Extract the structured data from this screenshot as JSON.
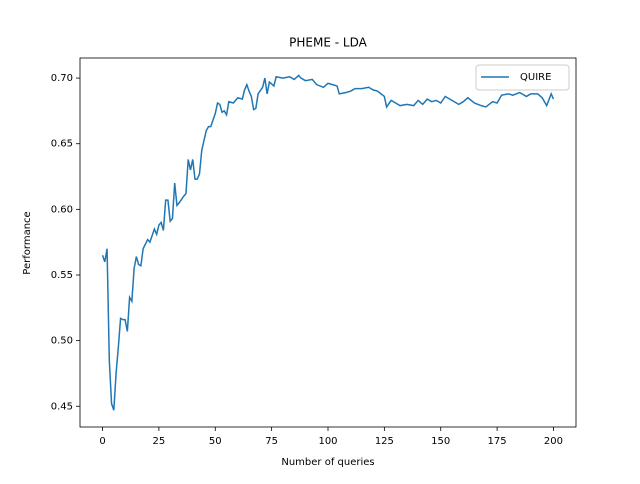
{
  "chart_data": {
    "type": "line",
    "title": "PHEME - LDA",
    "xlabel": "Number of queries",
    "ylabel": "Performance",
    "x": [
      0,
      1,
      2,
      3,
      4,
      5,
      6,
      7,
      8,
      9,
      10,
      11,
      12,
      13,
      14,
      15,
      16,
      17,
      18,
      20,
      21,
      23,
      24,
      25,
      26,
      27,
      28,
      29,
      30,
      31,
      32,
      33,
      34,
      36,
      37,
      38,
      39,
      40,
      41,
      42,
      43,
      44,
      46,
      47,
      48,
      50,
      51,
      52,
      53,
      54,
      55,
      56,
      58,
      60,
      62,
      63,
      64,
      65,
      66,
      67,
      68,
      69,
      71,
      72,
      73,
      74,
      76,
      77,
      80,
      83,
      85,
      87,
      88,
      90,
      93,
      95,
      98,
      100,
      102,
      104,
      105,
      108,
      110,
      112,
      115,
      118,
      120,
      122,
      125,
      126,
      128,
      130,
      132,
      135,
      138,
      140,
      142,
      144,
      146,
      148,
      150,
      152,
      155,
      158,
      160,
      162,
      165,
      168,
      170,
      173,
      175,
      177,
      180,
      182,
      185,
      188,
      190,
      193,
      195,
      197,
      199,
      200
    ],
    "series": [
      {
        "name": "QUIRE",
        "color": "#1f77b4",
        "values": [
          0.565,
          0.56,
          0.57,
          0.485,
          0.452,
          0.447,
          0.475,
          0.495,
          0.517,
          0.516,
          0.516,
          0.507,
          0.533,
          0.53,
          0.555,
          0.564,
          0.558,
          0.557,
          0.57,
          0.577,
          0.575,
          0.585,
          0.581,
          0.588,
          0.59,
          0.584,
          0.607,
          0.607,
          0.591,
          0.593,
          0.62,
          0.603,
          0.605,
          0.61,
          0.612,
          0.638,
          0.63,
          0.638,
          0.623,
          0.623,
          0.627,
          0.645,
          0.66,
          0.663,
          0.663,
          0.673,
          0.681,
          0.68,
          0.674,
          0.675,
          0.672,
          0.682,
          0.681,
          0.685,
          0.684,
          0.691,
          0.695,
          0.69,
          0.686,
          0.676,
          0.677,
          0.688,
          0.693,
          0.7,
          0.688,
          0.697,
          0.694,
          0.701,
          0.7,
          0.701,
          0.699,
          0.702,
          0.7,
          0.698,
          0.699,
          0.695,
          0.693,
          0.696,
          0.695,
          0.694,
          0.688,
          0.689,
          0.69,
          0.692,
          0.692,
          0.693,
          0.691,
          0.69,
          0.686,
          0.678,
          0.683,
          0.681,
          0.679,
          0.68,
          0.679,
          0.683,
          0.68,
          0.684,
          0.682,
          0.683,
          0.681,
          0.686,
          0.683,
          0.68,
          0.682,
          0.685,
          0.681,
          0.679,
          0.678,
          0.682,
          0.681,
          0.687,
          0.688,
          0.687,
          0.689,
          0.686,
          0.688,
          0.688,
          0.685,
          0.679,
          0.688,
          0.684
        ]
      }
    ],
    "xlim": [
      -10,
      210
    ],
    "ylim": [
      0.4342,
      0.7153
    ],
    "xticks": [
      0,
      25,
      50,
      75,
      100,
      125,
      150,
      175,
      200
    ],
    "yticks": [
      0.45,
      {
        "value": 0.5,
        "label": "0.50"
      },
      0.55,
      {
        "value": 0.6,
        "label": "0.60"
      },
      0.65,
      {
        "value": 0.7,
        "label": "0.70"
      }
    ],
    "legend": "upper right"
  }
}
